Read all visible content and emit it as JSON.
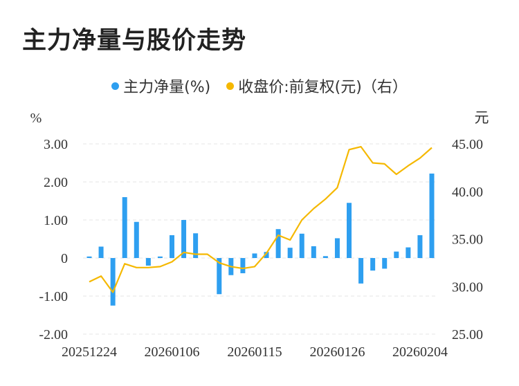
{
  "title": "主力净量与股价走势",
  "legend": {
    "net_label": "主力净量(%)",
    "price_label": "收盘价:前复权(元)（右）"
  },
  "colors": {
    "bar": "#2e9ff0",
    "line": "#f5b800",
    "grid": "#e6e6e6"
  },
  "chart_data": {
    "type": "bar+line",
    "left_unit": "%",
    "right_unit": "元",
    "left_ticks": [
      "3.00",
      "2.00",
      "1.00",
      "0",
      "-1.00",
      "-2.00"
    ],
    "right_ticks": [
      "45.00",
      "40.00",
      "35.00",
      "30.00",
      "25.00"
    ],
    "left_range": [
      -2,
      3
    ],
    "right_range": [
      25,
      45
    ],
    "x_ticks": [
      "20251224",
      "20260106",
      "20260115",
      "20260126",
      "20260204"
    ],
    "net_values": [
      0.04,
      0.3,
      -1.25,
      1.6,
      0.95,
      -0.2,
      0.04,
      0.6,
      1.0,
      0.65,
      0.0,
      -0.95,
      -0.45,
      -0.4,
      0.12,
      0.16,
      0.76,
      0.27,
      0.64,
      0.31,
      0.05,
      0.52,
      1.45,
      -0.67,
      -0.33,
      -0.28,
      0.17,
      0.28,
      0.6,
      2.22
    ],
    "price_values": [
      30.5,
      31.1,
      29.4,
      32.4,
      32.0,
      32.0,
      32.1,
      32.6,
      33.6,
      33.4,
      33.4,
      32.5,
      32.1,
      31.9,
      32.1,
      33.5,
      35.4,
      34.9,
      37.0,
      38.2,
      39.2,
      40.4,
      44.4,
      44.7,
      43.0,
      42.9,
      41.8,
      42.7,
      43.5,
      44.6
    ]
  }
}
